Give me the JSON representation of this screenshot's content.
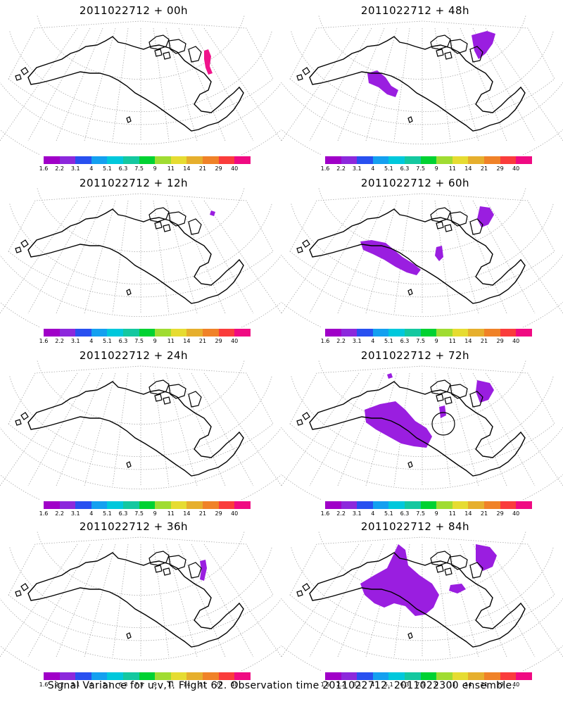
{
  "panels": [
    {
      "title": "2011022712 + 00h",
      "lead": "00h"
    },
    {
      "title": "2011022712 + 48h",
      "lead": "48h"
    },
    {
      "title": "2011022712 + 12h",
      "lead": "12h"
    },
    {
      "title": "2011022712 + 60h",
      "lead": "60h"
    },
    {
      "title": "2011022712 + 24h",
      "lead": "24h"
    },
    {
      "title": "2011022712 + 72h",
      "lead": "72h"
    },
    {
      "title": "2011022712 + 36h",
      "lead": "36h"
    },
    {
      "title": "2011022712 + 84h",
      "lead": "84h"
    }
  ],
  "colorbar": {
    "labels": [
      "1.6",
      "2.2",
      "3.1",
      "4",
      "5.1",
      "6.3",
      "7.5",
      "9",
      "11",
      "14",
      "21",
      "29",
      "40"
    ],
    "colors": [
      "#a000c8",
      "#8c28dc",
      "#2850f0",
      "#14a0f0",
      "#00c8dc",
      "#14c8a0",
      "#00d232",
      "#a0dc32",
      "#e6dc32",
      "#e6af2d",
      "#f08228",
      "#fa3c3c",
      "#f00a82"
    ]
  },
  "variance_color": "#9a1ee0",
  "footer": "Signal Variance for u,v,T. Flight 62. Observation time 2011022712. 2011022300 ensemble."
}
